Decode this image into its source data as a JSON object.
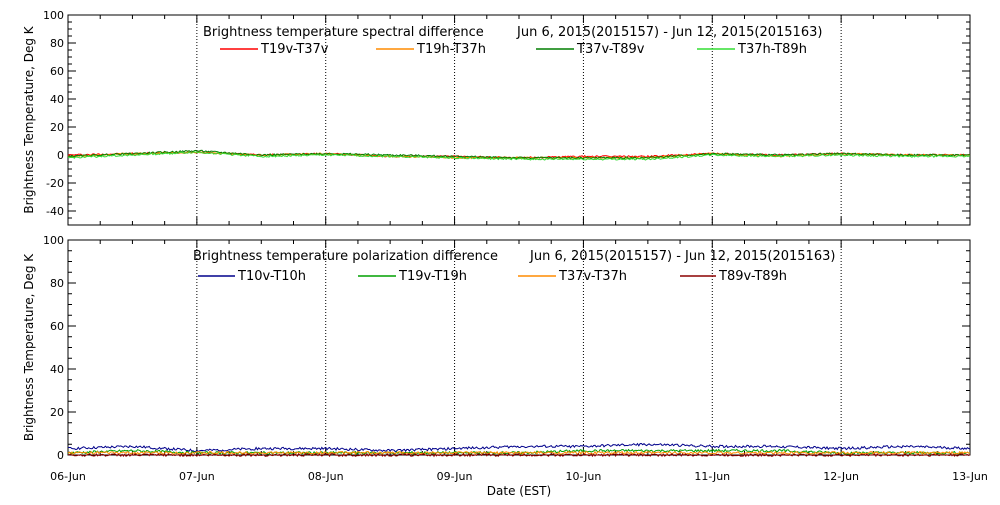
{
  "chart_data": [
    {
      "type": "line",
      "title": "Brightness temperature spectral difference",
      "date_range": "Jun  6, 2015(2015157) - Jun 12, 2015(2015163)",
      "ylabel": "Brightness Temperature, Deg K",
      "ylim": [
        -50,
        100
      ],
      "yticks": [
        -40,
        -20,
        0,
        20,
        40,
        60,
        80,
        100
      ],
      "xlim": [
        "2015-06-06",
        "2015-06-13"
      ],
      "xticks": [
        "06-Jun",
        "07-Jun",
        "08-Jun",
        "09-Jun",
        "10-Jun",
        "11-Jun",
        "12-Jun",
        "13-Jun"
      ],
      "x": [
        0,
        0.5,
        1,
        1.5,
        2,
        2.5,
        3,
        3.5,
        4,
        4.5,
        5,
        5.5,
        6,
        6.5,
        7
      ],
      "series": [
        {
          "name": "T19v-T37v",
          "color": "#ff0000",
          "values": [
            0,
            1,
            2,
            0,
            1,
            -1,
            -1,
            -2,
            -1,
            -1,
            1,
            0,
            1,
            0,
            0
          ]
        },
        {
          "name": "T19h-T37h",
          "color": "#ff8c00",
          "values": [
            -1,
            1,
            2,
            0,
            1,
            -1,
            -2,
            -2,
            -2,
            -2,
            1,
            -1,
            1,
            0,
            0
          ]
        },
        {
          "name": "T37v-T89v",
          "color": "#007f00",
          "values": [
            -1,
            1,
            3,
            0,
            1,
            0,
            -1,
            -2,
            -2,
            -2,
            1,
            0,
            1,
            0,
            0
          ]
        },
        {
          "name": "T37h-T89h",
          "color": "#33dd33",
          "values": [
            -2,
            0,
            2,
            -1,
            0,
            -1,
            -2,
            -3,
            -3,
            -3,
            0,
            -1,
            0,
            -1,
            -1
          ]
        }
      ],
      "grid": "vertical dotted lines at day boundaries",
      "legend": "top"
    },
    {
      "type": "line",
      "title": "Brightness temperature polarization difference",
      "date_range": "Jun  6, 2015(2015157) - Jun 12, 2015(2015163)",
      "ylabel": "Brightness Temperature, Deg K",
      "xlabel": "Date (EST)",
      "ylim": [
        0,
        100
      ],
      "yticks": [
        0,
        20,
        40,
        60,
        80,
        100
      ],
      "xlim": [
        "2015-06-06",
        "2015-06-13"
      ],
      "xticks": [
        "06-Jun",
        "07-Jun",
        "08-Jun",
        "09-Jun",
        "10-Jun",
        "11-Jun",
        "12-Jun",
        "13-Jun"
      ],
      "x": [
        0,
        0.5,
        1,
        1.5,
        2,
        2.5,
        3,
        3.5,
        4,
        4.5,
        5,
        5.5,
        6,
        6.5,
        7
      ],
      "series": [
        {
          "name": "T10v-T10h",
          "color": "#00008b",
          "values": [
            3,
            4,
            2,
            3,
            3,
            2,
            3,
            4,
            4,
            5,
            4,
            4,
            3,
            4,
            3
          ]
        },
        {
          "name": "T19v-T19h",
          "color": "#00a000",
          "values": [
            1,
            2,
            1,
            1,
            1,
            1,
            1,
            1,
            2,
            2,
            2,
            2,
            1,
            1,
            1
          ]
        },
        {
          "name": "T37v-T37h",
          "color": "#ff8c00",
          "values": [
            1,
            1,
            1,
            1,
            1,
            1,
            1,
            1,
            1,
            1,
            1,
            1,
            1,
            1,
            1
          ]
        },
        {
          "name": "T89v-T89h",
          "color": "#8b0000",
          "values": [
            0,
            0,
            0,
            0,
            0,
            0,
            0,
            0,
            0,
            0,
            0,
            0,
            0,
            0,
            0
          ]
        }
      ],
      "grid": "vertical dotted lines at day boundaries",
      "legend": "top"
    }
  ]
}
